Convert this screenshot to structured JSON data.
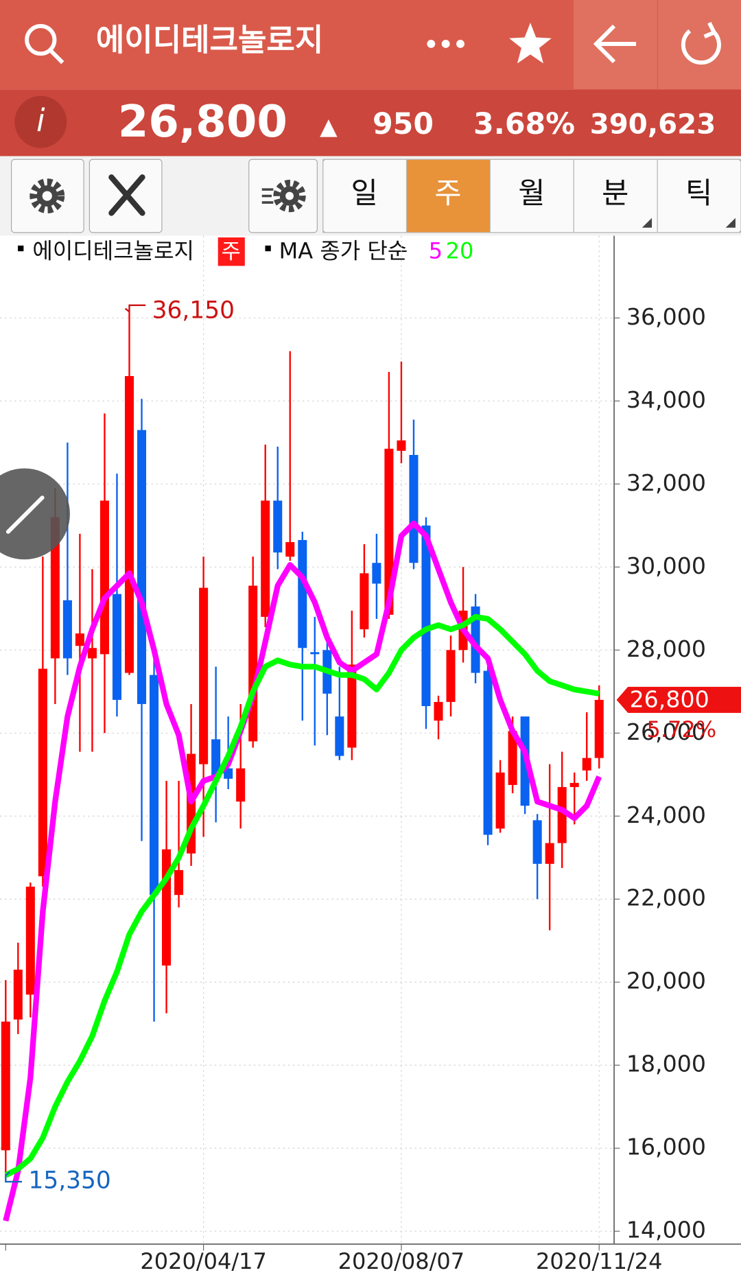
{
  "header": {
    "title": "에이디테크놀로지",
    "price": "26,800",
    "change_arrow": "▲",
    "change": "950",
    "change_pct": "3.68%",
    "volume": "390,623"
  },
  "toolbar": {
    "periods": [
      "일",
      "주",
      "월",
      "분",
      "틱"
    ],
    "active": "주"
  },
  "legend": {
    "name": "에이디테크놀로지",
    "period": "주",
    "ma_label": "MA 종가 단순"
  },
  "chart_data": {
    "type": "candlestick",
    "up_color": "#ff0000",
    "down_color": "#0a62f0",
    "categories": [
      null,
      null,
      null,
      null,
      null,
      null,
      null,
      null,
      null,
      null,
      null,
      null,
      null,
      null,
      null,
      null,
      "2020/04/17",
      null,
      null,
      null,
      null,
      null,
      null,
      null,
      null,
      null,
      null,
      null,
      null,
      null,
      null,
      null,
      "2020/08/07",
      null,
      null,
      null,
      null,
      null,
      null,
      null,
      null,
      null,
      null,
      null,
      null,
      null,
      null,
      null,
      "2020/11/24"
    ],
    "open": [
      15950,
      19100,
      19700,
      22550,
      27800,
      29200,
      28100,
      27800,
      27900,
      29350,
      27450,
      33300,
      27400,
      20400,
      22100,
      23100,
      25250,
      25850,
      25150,
      24350,
      25800,
      28800,
      31600,
      30250,
      30650,
      27950,
      28000,
      26400,
      25650,
      28500,
      30100,
      28850,
      32800,
      32700,
      31000,
      26300,
      26750,
      28000,
      29050,
      27500,
      23700,
      24750,
      26400,
      23900,
      22850,
      23350,
      24700,
      25100,
      25400
    ],
    "high": [
      20050,
      20950,
      22400,
      30250,
      31900,
      33000,
      30800,
      29950,
      33700,
      32250,
      36150,
      34050,
      27800,
      24850,
      24850,
      26700,
      30250,
      27600,
      26400,
      26700,
      30250,
      32950,
      32900,
      35200,
      30850,
      28800,
      28200,
      27600,
      28950,
      30550,
      30800,
      34700,
      34950,
      33550,
      31200,
      26900,
      28350,
      30000,
      29350,
      27800,
      25350,
      26400,
      26400,
      24050,
      25250,
      25550,
      25050,
      26500,
      27150
    ],
    "low": [
      15350,
      18750,
      19150,
      22300,
      26700,
      27400,
      25550,
      25550,
      26000,
      26400,
      27400,
      23400,
      19050,
      19250,
      21800,
      22800,
      23500,
      23850,
      24650,
      23700,
      25650,
      28550,
      29950,
      30150,
      26300,
      25700,
      25950,
      25350,
      25350,
      28300,
      28750,
      28750,
      32500,
      29950,
      26100,
      25850,
      26400,
      27700,
      27200,
      23300,
      23600,
      24550,
      24050,
      22000,
      21250,
      22750,
      23800,
      24850,
      25150
    ],
    "close": [
      19050,
      20300,
      22300,
      27550,
      31200,
      27800,
      28400,
      28050,
      31600,
      26800,
      34600,
      26700,
      22100,
      23200,
      22700,
      25500,
      29500,
      24950,
      24900,
      25150,
      29550,
      31600,
      30350,
      30600,
      28050,
      27900,
      26950,
      25450,
      27650,
      29850,
      29600,
      32850,
      33050,
      30100,
      26650,
      26750,
      28000,
      28950,
      27450,
      23550,
      25050,
      26050,
      24250,
      22850,
      23350,
      24700,
      24800,
      25400,
      26800
    ],
    "series": [
      {
        "name": "5",
        "color": "#ff00ff",
        "values": [
          14250,
          15450,
          17700,
          21700,
          24350,
          26400,
          27600,
          28500,
          29250,
          29550,
          29850,
          29150,
          28000,
          26700,
          25950,
          24350,
          24850,
          24950,
          25250,
          26050,
          26900,
          28200,
          29550,
          30050,
          29750,
          29150,
          28300,
          27700,
          27500,
          27700,
          27900,
          29150,
          30750,
          31050,
          30750,
          29950,
          29150,
          28500,
          28100,
          27800,
          26800,
          26050,
          25550,
          24350,
          24250,
          24150,
          23950,
          24250,
          24950
        ]
      },
      {
        "name": "20",
        "color": "#00ff00",
        "values": [
          15350,
          15500,
          15750,
          16250,
          17000,
          17600,
          18100,
          18700,
          19550,
          20250,
          21150,
          21700,
          22100,
          22500,
          23000,
          23700,
          24250,
          24850,
          25450,
          26150,
          27000,
          27600,
          27750,
          27650,
          27600,
          27600,
          27500,
          27400,
          27400,
          27300,
          27050,
          27450,
          28000,
          28300,
          28500,
          28600,
          28500,
          28600,
          28800,
          28750,
          28500,
          28200,
          27900,
          27500,
          27250,
          27150,
          27050,
          27000,
          26950
        ]
      }
    ],
    "ylim": [
      13690,
      37920
    ],
    "yticks": [
      {
        "value": 14000,
        "label": "14,000"
      },
      {
        "value": 16000,
        "label": "16,000"
      },
      {
        "value": 18000,
        "label": "18,000"
      },
      {
        "value": 20000,
        "label": "20,000"
      },
      {
        "value": 22000,
        "label": "22,000"
      },
      {
        "value": 24000,
        "label": "24,000"
      },
      {
        "value": 26000,
        "label": "26,000"
      },
      {
        "value": 28000,
        "label": "28,000"
      },
      {
        "value": 30000,
        "label": "30,000"
      },
      {
        "value": 32000,
        "label": "32,000"
      },
      {
        "value": 34000,
        "label": "34,000"
      },
      {
        "value": 36000,
        "label": "36,000"
      }
    ],
    "grid": true,
    "high_label": {
      "value": 36150,
      "label": "36,150"
    },
    "low_label": {
      "value": 15350,
      "label": "15,350"
    },
    "last_label": {
      "value": 26800,
      "label": "26,800"
    },
    "last_pct": {
      "value": 5.72,
      "label": "5.72%"
    }
  }
}
